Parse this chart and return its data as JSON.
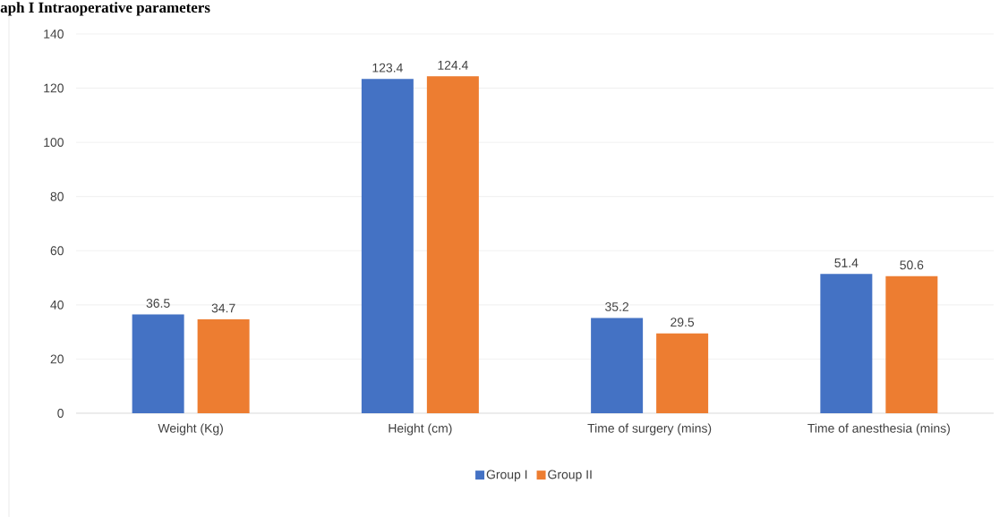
{
  "chart_data": {
    "type": "bar",
    "title": "aph I Intraoperative parameters",
    "categories": [
      "Weight (Kg)",
      "Height (cm)",
      "Time of surgery (mins)",
      "Time of anesthesia (mins)"
    ],
    "series": [
      {
        "name": "Group I",
        "color": "#4472c4",
        "values": [
          36.5,
          123.4,
          35.2,
          51.4
        ]
      },
      {
        "name": "Group II",
        "color": "#ed7d31",
        "values": [
          34.7,
          124.4,
          29.5,
          50.6
        ]
      }
    ],
    "ylim": [
      0,
      140
    ],
    "yticks": [
      0,
      20,
      40,
      60,
      80,
      100,
      120,
      140
    ],
    "grid": "y",
    "legend": "bottom",
    "data_labels": true
  }
}
